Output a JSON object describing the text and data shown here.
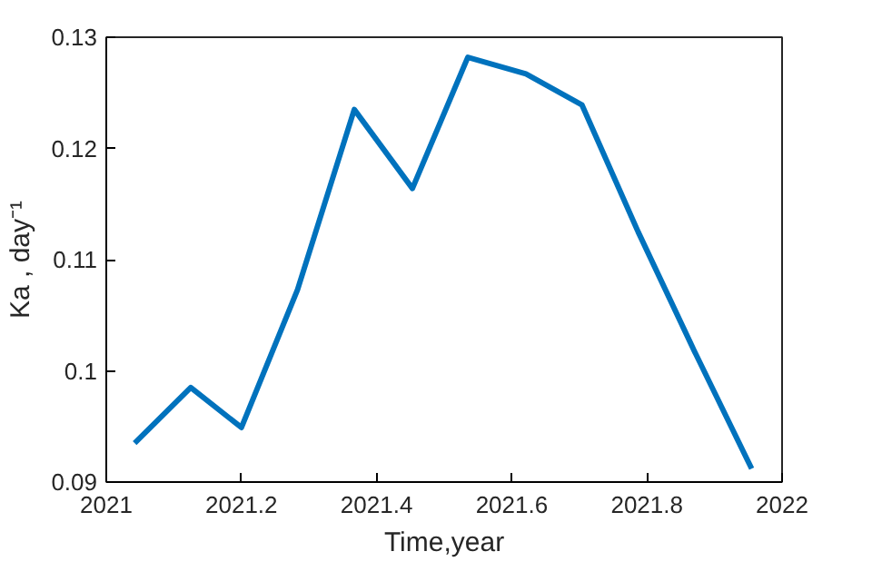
{
  "chart_data": {
    "type": "line",
    "xlabel": "Time,year",
    "ylabel": "Ka , day⁻¹",
    "x": [
      2021.042,
      2021.125,
      2021.2,
      2021.283,
      2021.367,
      2021.453,
      2021.535,
      2021.621,
      2021.704,
      2021.787,
      2021.87,
      2021.955
    ],
    "series": [
      {
        "color": "#0072bd",
        "values": [
          0.0935,
          0.0985,
          0.0949,
          0.1073,
          0.1235,
          0.1164,
          0.1282,
          0.1267,
          0.1239,
          0.1125,
          0.1018,
          0.0912
        ]
      }
    ],
    "xlim": [
      2021,
      2022
    ],
    "xticks": [
      2021,
      2021.2,
      2021.4,
      2021.6,
      2021.8,
      2022
    ],
    "ylim": [
      0.09,
      0.13
    ],
    "yticks": [
      0.09,
      {
        "value": 0.1,
        "label": "0.1"
      },
      0.11,
      0.12,
      0.13
    ],
    "grid": false,
    "marker": "none",
    "line_style": "solid"
  }
}
